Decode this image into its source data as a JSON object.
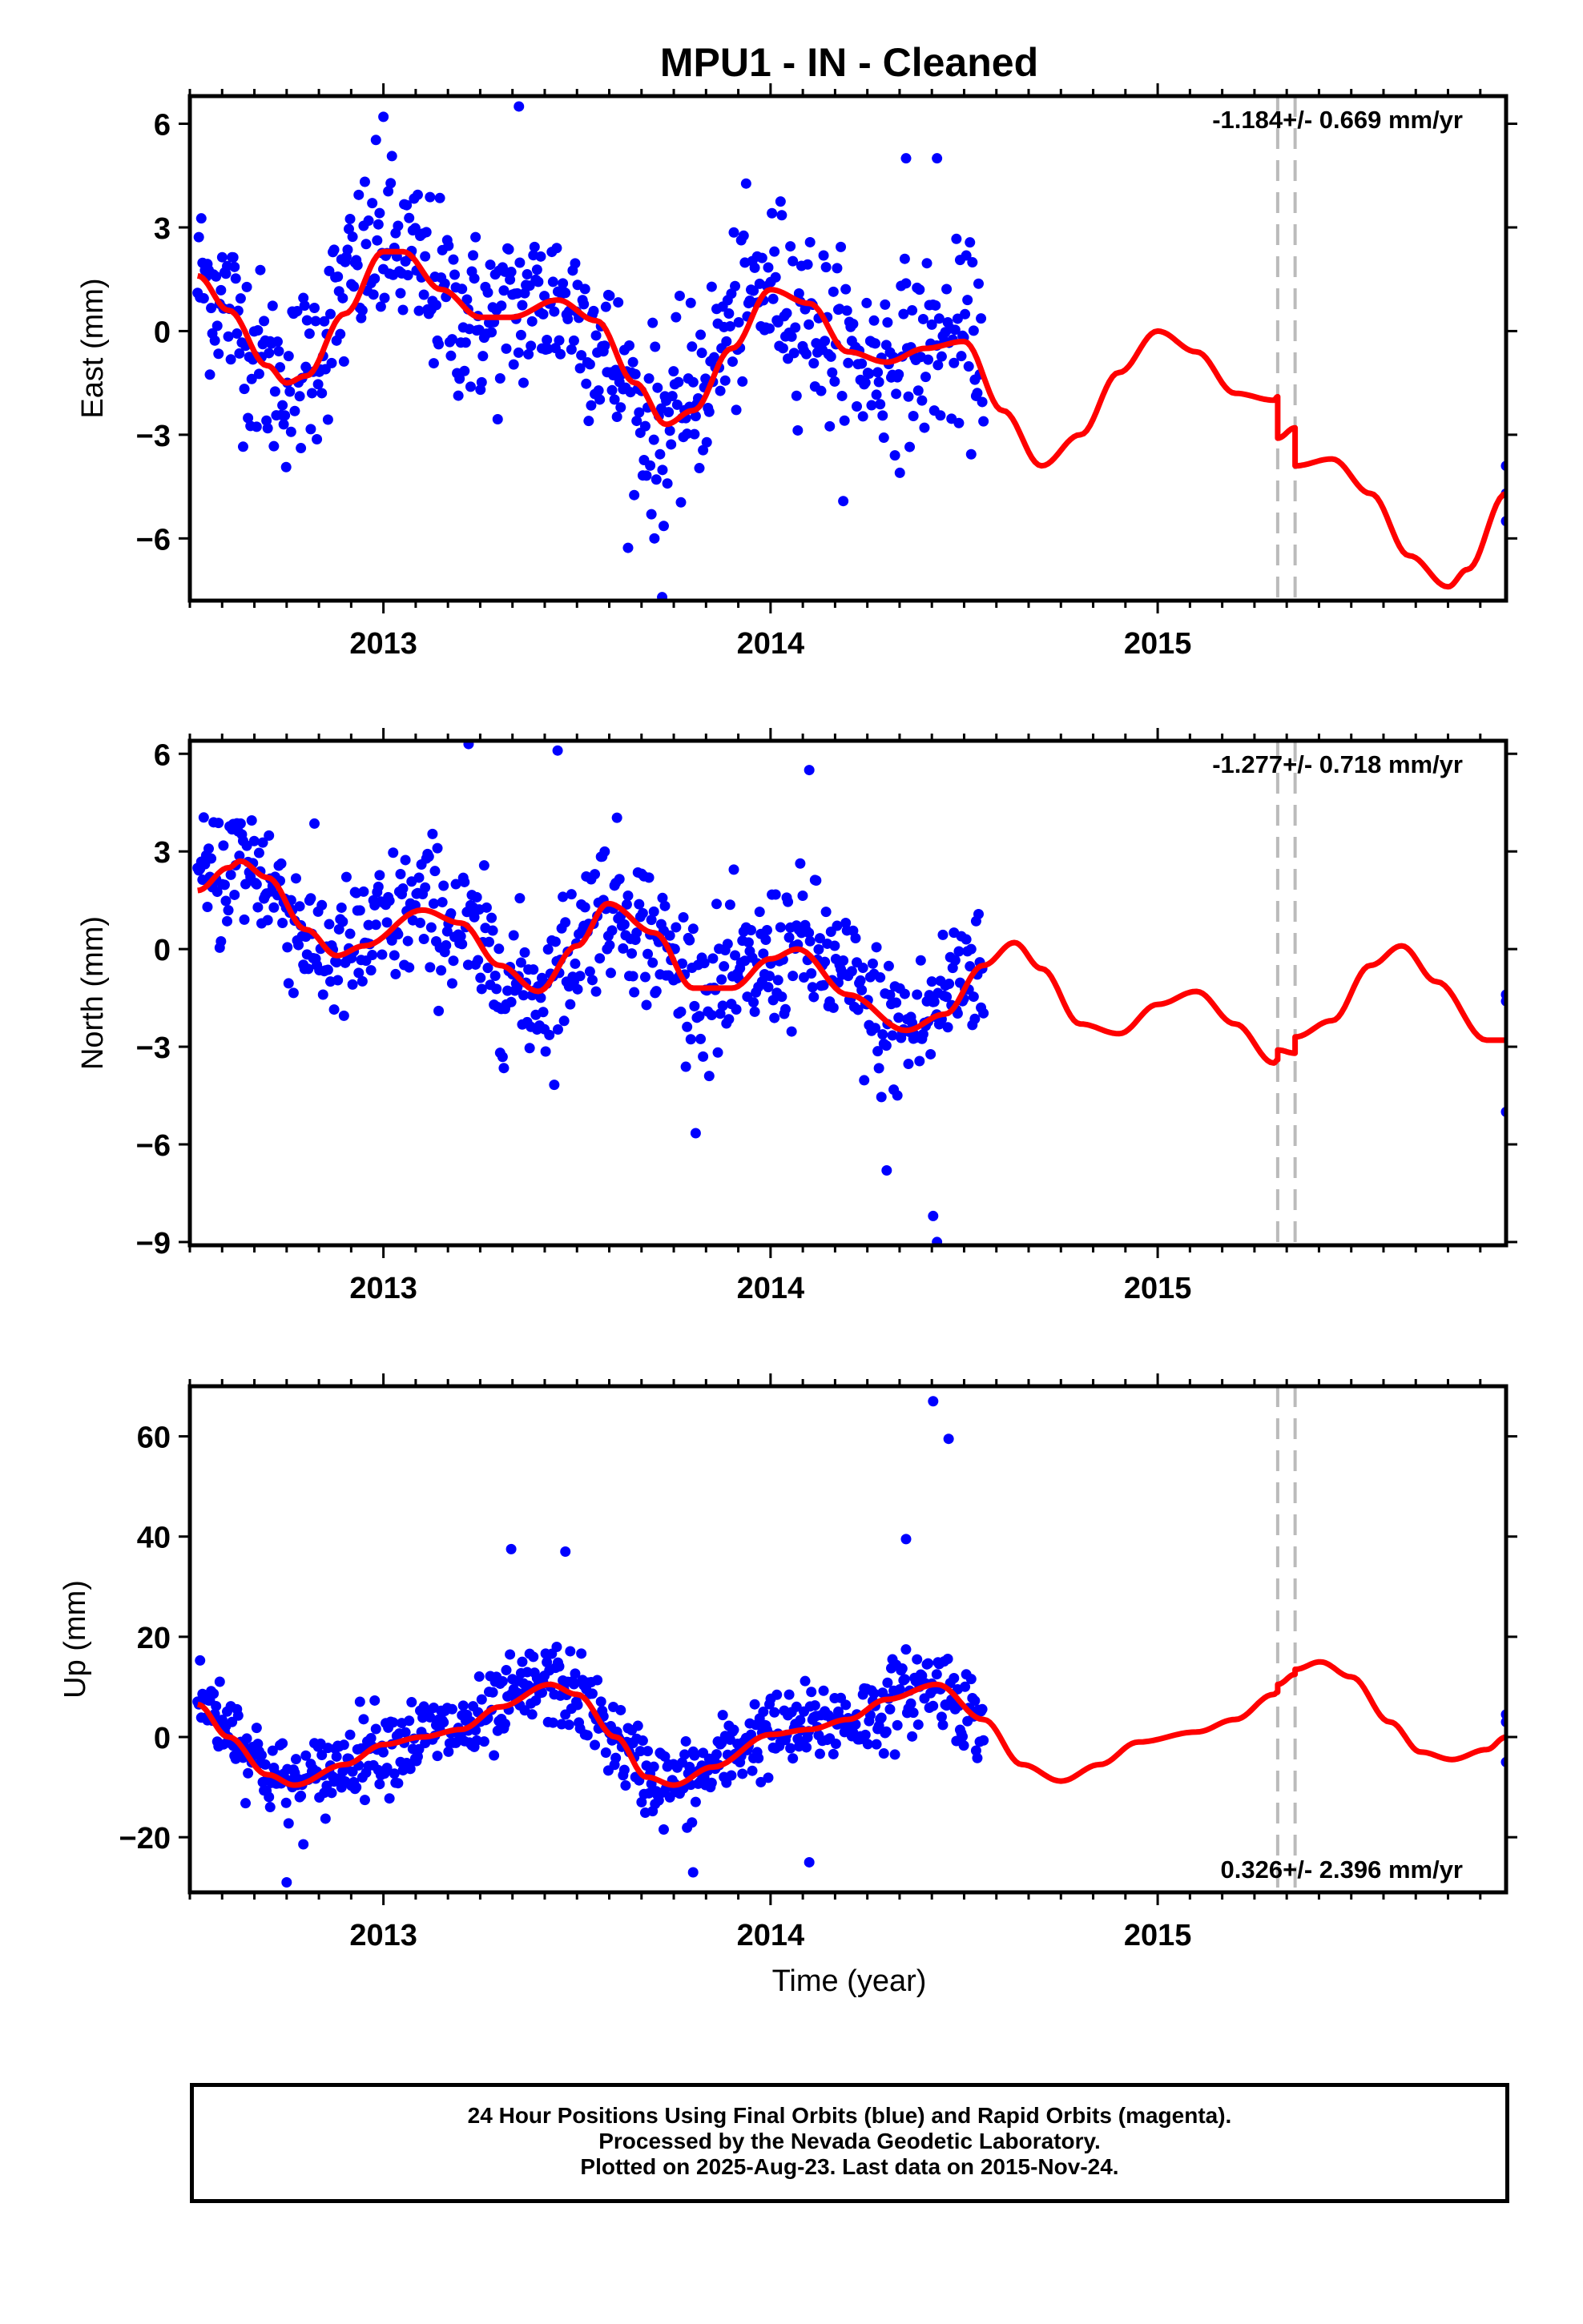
{
  "chart_data": {
    "title": "MPU1  - IN - Cleaned",
    "xlabel": "Time (year)",
    "xlim": [
      2012.5,
      2015.9
    ],
    "x_ticks": [
      2013,
      2014,
      2015
    ],
    "offset_lines": [
      2015.31,
      2015.355
    ],
    "colors": {
      "final_orbits": "#0000ff",
      "rapid_orbits": "#ff00ff",
      "model": "#ff0000",
      "offset_line": "#bbbbbb"
    },
    "panels": [
      {
        "name": "east",
        "type": "scatter",
        "ylabel": "East (mm)",
        "ylim": [
          -7.8,
          6.8
        ],
        "y_ticks": [
          6,
          3,
          0,
          -3,
          -6
        ],
        "rate_label": "-1.184+/- 0.669 mm/yr",
        "rate_position": "top-right",
        "model_curve": [
          [
            2012.52,
            1.6
          ],
          [
            2012.6,
            0.6
          ],
          [
            2012.7,
            -1.0
          ],
          [
            2012.75,
            -1.5
          ],
          [
            2012.8,
            -1.3
          ],
          [
            2012.9,
            0.5
          ],
          [
            2013.0,
            2.3
          ],
          [
            2013.05,
            2.3
          ],
          [
            2013.15,
            1.2
          ],
          [
            2013.25,
            0.4
          ],
          [
            2013.33,
            0.4
          ],
          [
            2013.45,
            0.9
          ],
          [
            2013.55,
            0.3
          ],
          [
            2013.65,
            -1.5
          ],
          [
            2013.73,
            -2.7
          ],
          [
            2013.8,
            -2.3
          ],
          [
            2013.9,
            -0.5
          ],
          [
            2014.0,
            1.2
          ],
          [
            2014.1,
            0.8
          ],
          [
            2014.2,
            -0.6
          ],
          [
            2014.3,
            -0.9
          ],
          [
            2014.4,
            -0.5
          ],
          [
            2014.5,
            -0.3
          ],
          [
            2014.6,
            -2.3
          ],
          [
            2014.7,
            -3.9
          ],
          [
            2014.8,
            -3.0
          ],
          [
            2014.9,
            -1.2
          ],
          [
            2015.0,
            0.0
          ],
          [
            2015.1,
            -0.6
          ],
          [
            2015.2,
            -1.8
          ],
          [
            2015.3,
            -2.0
          ],
          [
            2015.31,
            -1.9
          ],
          [
            2015.31,
            -3.1
          ],
          [
            2015.355,
            -2.8
          ],
          [
            2015.355,
            -3.9
          ],
          [
            2015.45,
            -3.7
          ],
          [
            2015.55,
            -4.7
          ],
          [
            2015.65,
            -6.5
          ],
          [
            2015.75,
            -7.4
          ],
          [
            2015.8,
            -6.9
          ],
          [
            2015.9,
            -4.7
          ]
        ],
        "observations": {
          "start": 2012.52,
          "end": 2014.55,
          "count": 640,
          "seasonal_base": [
            [
              2012.52,
              1.5
            ],
            [
              2012.75,
              -1.4
            ],
            [
              2013.0,
              2.4
            ],
            [
              2013.25,
              0.3
            ],
            [
              2013.45,
              0.9
            ],
            [
              2013.72,
              -2.7
            ],
            [
              2014.0,
              1.2
            ],
            [
              2014.25,
              -0.9
            ],
            [
              2014.5,
              -0.3
            ]
          ],
          "scatter_mm": 1.7,
          "late_points": [
            [
              2015.9,
              -3.9
            ],
            [
              2015.9,
              -4.7
            ],
            [
              2015.9,
              -5.5
            ]
          ],
          "outliers": [
            [
              2013.35,
              6.5
            ],
            [
              2013.72,
              -7.7
            ],
            [
              2013.7,
              -6.0
            ],
            [
              2013.0,
              6.2
            ],
            [
              2014.35,
              5.0
            ],
            [
              2014.43,
              5.0
            ]
          ]
        }
      },
      {
        "name": "north",
        "type": "scatter",
        "ylabel": "North (mm)",
        "ylim": [
          -9.1,
          6.4
        ],
        "y_ticks": [
          6,
          3,
          0,
          -3,
          -6,
          -9
        ],
        "rate_label": "-1.277+/- 0.718 mm/yr",
        "rate_position": "top-right",
        "model_curve": [
          [
            2012.52,
            1.8
          ],
          [
            2012.6,
            2.5
          ],
          [
            2012.63,
            2.7
          ],
          [
            2012.7,
            2.2
          ],
          [
            2012.8,
            0.6
          ],
          [
            2012.88,
            -0.2
          ],
          [
            2012.95,
            0.1
          ],
          [
            2013.1,
            1.2
          ],
          [
            2013.2,
            0.8
          ],
          [
            2013.3,
            -0.5
          ],
          [
            2013.4,
            -1.3
          ],
          [
            2013.5,
            0.1
          ],
          [
            2013.58,
            1.4
          ],
          [
            2013.7,
            0.5
          ],
          [
            2013.8,
            -1.2
          ],
          [
            2013.9,
            -1.2
          ],
          [
            2014.0,
            -0.3
          ],
          [
            2014.07,
            0.0
          ],
          [
            2014.2,
            -1.4
          ],
          [
            2014.35,
            -2.5
          ],
          [
            2014.45,
            -2.0
          ],
          [
            2014.55,
            -0.5
          ],
          [
            2014.63,
            0.2
          ],
          [
            2014.7,
            -0.6
          ],
          [
            2014.8,
            -2.3
          ],
          [
            2014.9,
            -2.6
          ],
          [
            2015.0,
            -1.7
          ],
          [
            2015.1,
            -1.3
          ],
          [
            2015.2,
            -2.3
          ],
          [
            2015.3,
            -3.5
          ],
          [
            2015.31,
            -3.4
          ],
          [
            2015.31,
            -3.1
          ],
          [
            2015.355,
            -3.2
          ],
          [
            2015.355,
            -2.7
          ],
          [
            2015.45,
            -2.2
          ],
          [
            2015.55,
            -0.5
          ],
          [
            2015.63,
            0.1
          ],
          [
            2015.72,
            -1.0
          ],
          [
            2015.85,
            -2.8
          ],
          [
            2015.9,
            -2.8
          ]
        ],
        "observations": {
          "start": 2012.52,
          "end": 2014.55,
          "count": 640,
          "seasonal_base": [
            [
              2012.52,
              1.8
            ],
            [
              2012.63,
              2.7
            ],
            [
              2012.88,
              -0.2
            ],
            [
              2013.1,
              1.2
            ],
            [
              2013.4,
              -1.3
            ],
            [
              2013.58,
              1.4
            ],
            [
              2013.85,
              -1.3
            ],
            [
              2014.07,
              0.0
            ],
            [
              2014.35,
              -2.5
            ],
            [
              2014.55,
              -0.3
            ]
          ],
          "scatter_mm": 1.5,
          "late_points": [
            [
              2015.9,
              -1.4
            ],
            [
              2015.9,
              -1.6
            ],
            [
              2015.9,
              -5.0
            ]
          ],
          "outliers": [
            [
              2014.43,
              -9.0
            ],
            [
              2014.42,
              -8.2
            ],
            [
              2013.22,
              6.3
            ],
            [
              2013.45,
              6.1
            ],
            [
              2014.1,
              5.5
            ],
            [
              2014.3,
              -6.8
            ]
          ]
        }
      },
      {
        "name": "up",
        "type": "scatter",
        "ylabel": "Up (mm)",
        "ylim": [
          -31,
          70
        ],
        "y_ticks": [
          60,
          40,
          20,
          0,
          -20
        ],
        "rate_label": "0.326+/- 2.396 mm/yr",
        "rate_position": "bottom-right",
        "model_curve": [
          [
            2012.52,
            6.5
          ],
          [
            2012.6,
            0
          ],
          [
            2012.7,
            -7.5
          ],
          [
            2012.77,
            -9.6
          ],
          [
            2012.9,
            -5.5
          ],
          [
            2013.0,
            -1.5
          ],
          [
            2013.1,
            0.0
          ],
          [
            2013.2,
            1.5
          ],
          [
            2013.3,
            6.0
          ],
          [
            2013.43,
            10.5
          ],
          [
            2013.5,
            8.5
          ],
          [
            2013.6,
            0.0
          ],
          [
            2013.68,
            -8.0
          ],
          [
            2013.75,
            -9.6
          ],
          [
            2013.85,
            -6.0
          ],
          [
            2014.0,
            0.5
          ],
          [
            2014.1,
            1.5
          ],
          [
            2014.2,
            3.5
          ],
          [
            2014.3,
            7.5
          ],
          [
            2014.43,
            10.5
          ],
          [
            2014.55,
            3.5
          ],
          [
            2014.65,
            -5.5
          ],
          [
            2014.75,
            -8.8
          ],
          [
            2014.85,
            -5.5
          ],
          [
            2014.95,
            -1.0
          ],
          [
            2015.1,
            1.0
          ],
          [
            2015.2,
            3.5
          ],
          [
            2015.3,
            8.5
          ],
          [
            2015.31,
            9.0
          ],
          [
            2015.31,
            10.5
          ],
          [
            2015.355,
            12.5
          ],
          [
            2015.355,
            13.5
          ],
          [
            2015.42,
            15.0
          ],
          [
            2015.5,
            12.0
          ],
          [
            2015.6,
            3.0
          ],
          [
            2015.68,
            -3.0
          ],
          [
            2015.76,
            -4.5
          ],
          [
            2015.85,
            -2.5
          ],
          [
            2015.9,
            0.0
          ]
        ],
        "observations": {
          "start": 2012.52,
          "end": 2014.55,
          "count": 640,
          "seasonal_base": [
            [
              2012.52,
              6.5
            ],
            [
              2012.77,
              -9.6
            ],
            [
              2013.0,
              -1.5
            ],
            [
              2013.2,
              1.5
            ],
            [
              2013.43,
              10.5
            ],
            [
              2013.75,
              -9.6
            ],
            [
              2014.0,
              0.5
            ],
            [
              2014.2,
              3.5
            ],
            [
              2014.43,
              10.5
            ],
            [
              2014.55,
              3.5
            ]
          ],
          "scatter_mm": 5.5,
          "late_points": [
            [
              2015.9,
              4.5
            ],
            [
              2015.9,
              3.0
            ],
            [
              2015.9,
              -5.0
            ]
          ],
          "outliers": [
            [
              2014.42,
              67
            ],
            [
              2014.46,
              59.5
            ],
            [
              2013.33,
              37.5
            ],
            [
              2013.47,
              37
            ],
            [
              2014.35,
              39.5
            ],
            [
              2012.75,
              -29
            ],
            [
              2013.8,
              -27
            ],
            [
              2014.1,
              -25
            ]
          ]
        }
      }
    ]
  },
  "footer": {
    "line1": "24 Hour Positions Using Final Orbits (blue) and Rapid Orbits (magenta).",
    "line2": "Processed by the Nevada Geodetic Laboratory.",
    "line3": "Plotted on 2025-Aug-23. Last data on 2015-Nov-24."
  }
}
